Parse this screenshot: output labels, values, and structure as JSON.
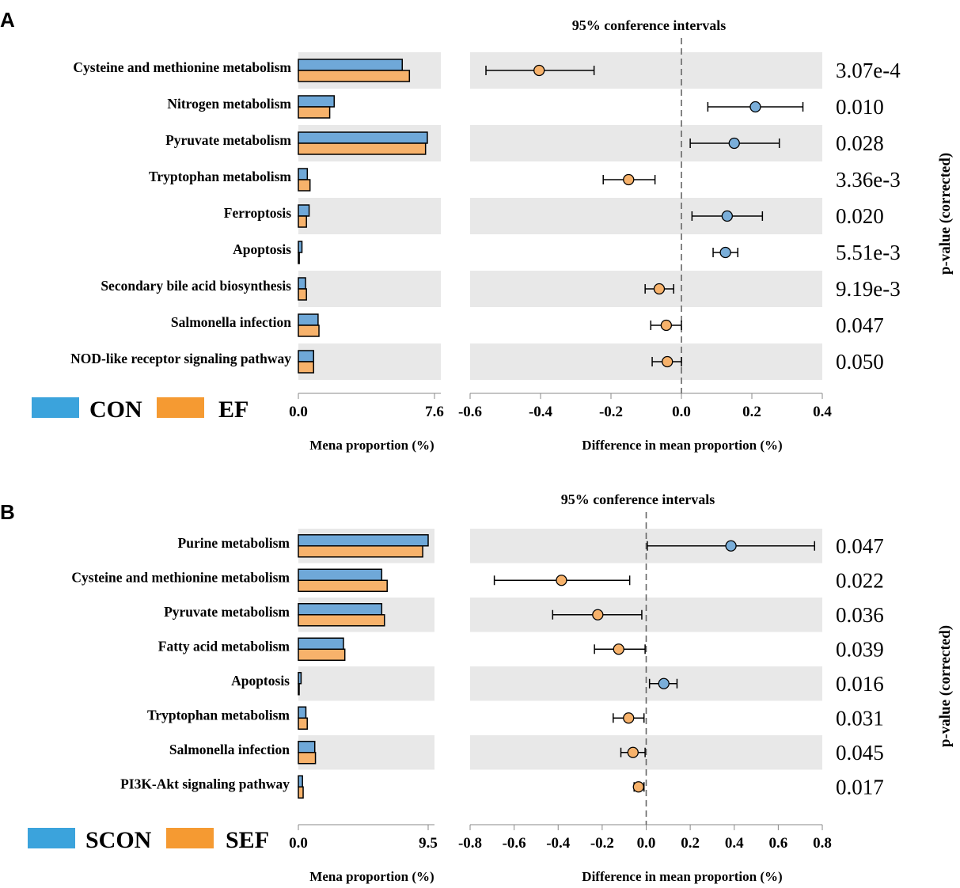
{
  "chart_data": [
    {
      "type": "bar",
      "panel_label": "A",
      "title": "95% conference intervals",
      "categories": [
        "Cysteine and methionine metabolism",
        "Nitrogen metabolism",
        "Pyruvate metabolism",
        "Tryptophan metabolism",
        "Ferroptosis",
        "Apoptosis",
        "Secondary bile acid biosynthesis",
        "Salmonella infection",
        "NOD-like receptor signaling pathway"
      ],
      "series": [
        {
          "name": "CON",
          "color": "#6fa8d8",
          "values": [
            5.8,
            2.0,
            7.2,
            0.5,
            0.6,
            0.2,
            0.4,
            1.1,
            0.85
          ]
        },
        {
          "name": "EF",
          "color": "#f7b26b",
          "values": [
            6.2,
            1.75,
            7.1,
            0.65,
            0.45,
            0.05,
            0.45,
            1.15,
            0.85
          ]
        }
      ],
      "legend": [
        {
          "name": "CON",
          "color": "#3ba3dc"
        },
        {
          "name": "EF",
          "color": "#f59a32"
        }
      ],
      "bar_axis": {
        "label": "Mena proportion (%)",
        "min": 0,
        "max": 7.6,
        "ticks": [
          "0.0",
          "7.6"
        ]
      },
      "diff_axis": {
        "label": "Difference in mean proportion (%)",
        "min": -0.6,
        "max": 0.4,
        "ticks": [
          "-0.6",
          "-0.4",
          "-0.2",
          "0.0",
          "0.2",
          "0.4"
        ]
      },
      "differences": [
        {
          "mean": -0.404,
          "lower": -0.555,
          "upper": -0.248,
          "group": "EF"
        },
        {
          "mean": 0.21,
          "lower": 0.075,
          "upper": 0.345,
          "group": "CON"
        },
        {
          "mean": 0.15,
          "lower": 0.025,
          "upper": 0.278,
          "group": "CON"
        },
        {
          "mean": -0.15,
          "lower": -0.222,
          "upper": -0.075,
          "group": "EF"
        },
        {
          "mean": 0.13,
          "lower": 0.03,
          "upper": 0.23,
          "group": "CON"
        },
        {
          "mean": 0.125,
          "lower": 0.09,
          "upper": 0.16,
          "group": "CON"
        },
        {
          "mean": -0.063,
          "lower": -0.103,
          "upper": -0.022,
          "group": "EF"
        },
        {
          "mean": -0.043,
          "lower": -0.087,
          "upper": 0.0,
          "group": "EF"
        },
        {
          "mean": -0.04,
          "lower": -0.083,
          "upper": 0.0,
          "group": "EF"
        }
      ],
      "p_values": [
        "3.07e-4",
        "0.010",
        "0.028",
        "3.36e-3",
        "0.020",
        "5.51e-3",
        "9.19e-3",
        "0.047",
        "0.050"
      ],
      "p_label": "p-value (corrected)"
    },
    {
      "type": "bar",
      "panel_label": "B",
      "title": "95% conference intervals",
      "categories": [
        "Purine metabolism",
        "Cysteine and methionine metabolism",
        "Pyruvate metabolism",
        "Fatty acid metabolism",
        "Apoptosis",
        "Tryptophan metabolism",
        "Salmonella infection",
        "PI3K-Akt signaling pathway"
      ],
      "series": [
        {
          "name": "SCON",
          "color": "#6fa8d8",
          "values": [
            9.5,
            6.1,
            6.1,
            3.3,
            0.2,
            0.55,
            1.2,
            0.3
          ]
        },
        {
          "name": "SEF",
          "color": "#f7b26b",
          "values": [
            9.1,
            6.5,
            6.3,
            3.4,
            0.05,
            0.65,
            1.25,
            0.35
          ]
        }
      ],
      "legend": [
        {
          "name": "SCON",
          "color": "#3ba3dc"
        },
        {
          "name": "SEF",
          "color": "#f59a32"
        }
      ],
      "bar_axis": {
        "label": "Mena proportion (%)",
        "min": 0,
        "max": 9.5,
        "ticks": [
          "0.0",
          "9.5"
        ]
      },
      "diff_axis": {
        "label": "Difference in mean proportion (%)",
        "min": -0.8,
        "max": 0.8,
        "ticks": [
          "-0.8",
          "-0.6",
          "-0.4",
          "-0.2",
          "0.0",
          "0.2",
          "0.4",
          "0.6",
          "0.8"
        ]
      },
      "differences": [
        {
          "mean": 0.385,
          "lower": 0.005,
          "upper": 0.765,
          "group": "SCON"
        },
        {
          "mean": -0.385,
          "lower": -0.69,
          "upper": -0.075,
          "group": "SEF"
        },
        {
          "mean": -0.22,
          "lower": -0.425,
          "upper": -0.02,
          "group": "SEF"
        },
        {
          "mean": -0.125,
          "lower": -0.235,
          "upper": -0.005,
          "group": "SEF"
        },
        {
          "mean": 0.08,
          "lower": 0.015,
          "upper": 0.14,
          "group": "SCON"
        },
        {
          "mean": -0.08,
          "lower": -0.15,
          "upper": -0.01,
          "group": "SEF"
        },
        {
          "mean": -0.06,
          "lower": -0.115,
          "upper": -0.005,
          "group": "SEF"
        },
        {
          "mean": -0.035,
          "lower": -0.055,
          "upper": -0.01,
          "group": "SEF"
        }
      ],
      "p_values": [
        "0.047",
        "0.022",
        "0.036",
        "0.039",
        "0.016",
        "0.031",
        "0.045",
        "0.017"
      ],
      "p_label": "p-value (corrected)"
    }
  ]
}
